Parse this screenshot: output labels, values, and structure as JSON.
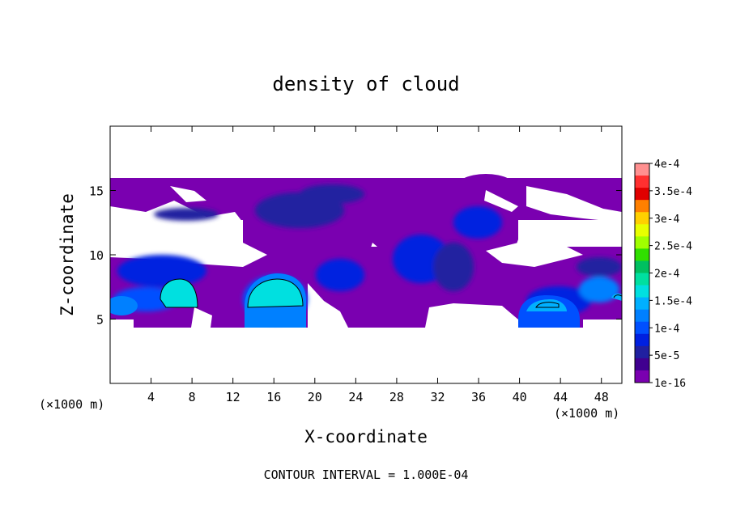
{
  "chart_data": {
    "type": "heatmap",
    "title": "density of cloud",
    "xlabel": "X-coordinate",
    "ylabel": "Z-coordinate",
    "x_unit_left": "(×1000 m)",
    "x_unit_right": "(×1000 m)",
    "footer": "CONTOUR INTERVAL = 1.000E-04",
    "xlim": [
      0,
      50
    ],
    "ylim": [
      0,
      20
    ],
    "x_ticks": [
      4,
      8,
      12,
      16,
      20,
      24,
      28,
      32,
      36,
      40,
      44,
      48
    ],
    "y_ticks": [
      5,
      10,
      15
    ],
    "grid": false,
    "legend_position": "right",
    "colorbar": {
      "labels": [
        "4e-4",
        "3.5e-4",
        "3e-4",
        "2.5e-4",
        "2e-4",
        "1.5e-4",
        "1e-4",
        "5e-5",
        "1e-16"
      ],
      "colors": [
        "#ff9090",
        "#ff3030",
        "#e00000",
        "#ff8000",
        "#ffd000",
        "#e8ff00",
        "#a0ff00",
        "#30e000",
        "#00c060",
        "#00e0a0",
        "#00e0e0",
        "#00b0ff",
        "#0080ff",
        "#0050ff",
        "#0020e0",
        "#2020a0",
        "#400090",
        "#7a00b0"
      ]
    },
    "cloud_bands": [
      {
        "x": [
          0,
          50
        ],
        "z": [
          13.0,
          16.0
        ],
        "level": "1e-16"
      },
      {
        "x": [
          0,
          50
        ],
        "z": [
          4.5,
          11.0
        ],
        "level": "1e-16"
      },
      {
        "x": [
          2,
          12
        ],
        "z": [
          5.0,
          10.0
        ],
        "level": "5e-5"
      },
      {
        "x": [
          13,
          19
        ],
        "z": [
          5.0,
          8.5
        ],
        "level": "1e-4"
      },
      {
        "x": [
          5,
          8
        ],
        "z": [
          5.5,
          7.5
        ],
        "level": "1.5e-4"
      },
      {
        "x": [
          41,
          46
        ],
        "z": [
          5.0,
          6.5
        ],
        "level": "5e-5"
      },
      {
        "x": [
          28,
          38
        ],
        "z": [
          7.0,
          14.0
        ],
        "level": "5e-5"
      }
    ]
  }
}
